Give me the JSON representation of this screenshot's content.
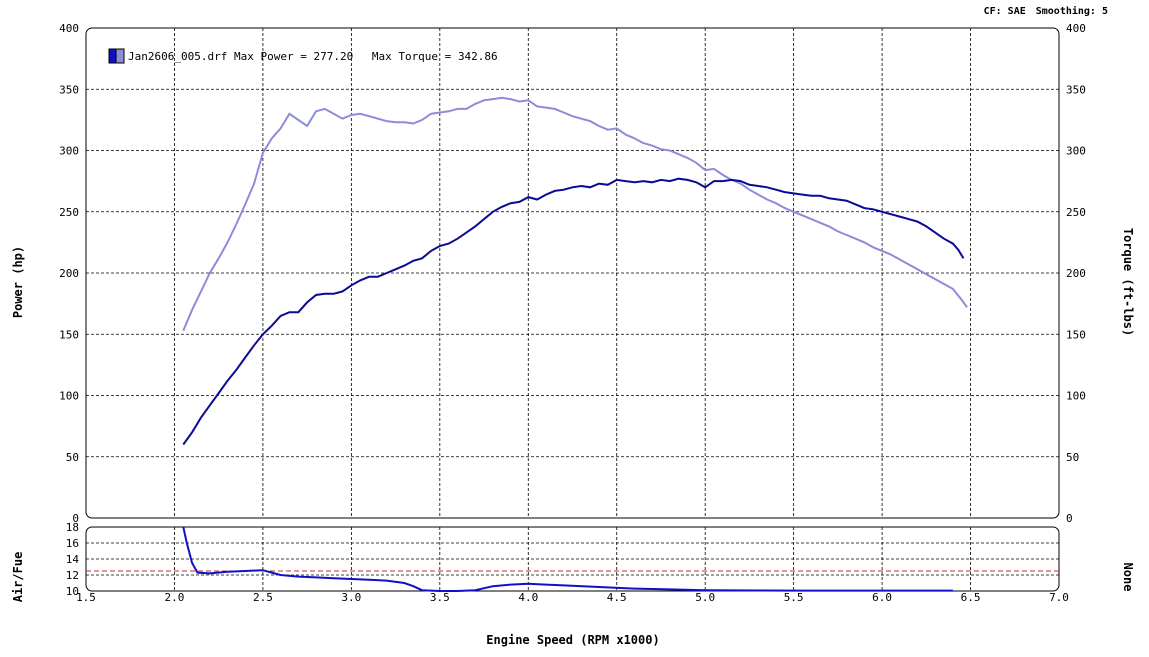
{
  "header": {
    "cf_label": "CF: SAE",
    "smoothing_label": "Smoothing: 5"
  },
  "chart_data": {
    "type": "line",
    "x_axis": {
      "label": "Engine Speed (RPM x1000)",
      "range": [
        1.5,
        7.0
      ],
      "ticks": [
        "1.5",
        "2.0",
        "2.5",
        "3.0",
        "3.5",
        "4.0",
        "4.5",
        "5.0",
        "5.5",
        "6.0",
        "6.5",
        "7.0"
      ]
    },
    "y_left": {
      "label": "Power (hp)",
      "range": [
        0,
        400
      ],
      "ticks": [
        "0",
        "50",
        "100",
        "150",
        "200",
        "250",
        "300",
        "350",
        "400"
      ]
    },
    "y_right": {
      "label": "Torque (ft-lbs)",
      "range": [
        0,
        400
      ],
      "ticks": [
        "0",
        "50",
        "100",
        "150",
        "200",
        "250",
        "300",
        "350",
        "400"
      ]
    },
    "legend": {
      "file": "Jan2606_005.drf",
      "max_power_label": "Max Power =",
      "max_power": "277.20",
      "max_torque_label": "Max Torque =",
      "max_torque": "342.86"
    },
    "grid": true,
    "series": [
      {
        "key": "power",
        "color": "#0a0a96",
        "points": [
          [
            2.05,
            60
          ],
          [
            2.1,
            70
          ],
          [
            2.15,
            82
          ],
          [
            2.2,
            92
          ],
          [
            2.25,
            102
          ],
          [
            2.3,
            112
          ],
          [
            2.35,
            121
          ],
          [
            2.4,
            131
          ],
          [
            2.45,
            141
          ],
          [
            2.5,
            150
          ],
          [
            2.55,
            157
          ],
          [
            2.6,
            165
          ],
          [
            2.65,
            168
          ],
          [
            2.7,
            168
          ],
          [
            2.75,
            176
          ],
          [
            2.8,
            182
          ],
          [
            2.85,
            183
          ],
          [
            2.9,
            183
          ],
          [
            2.95,
            185
          ],
          [
            3.0,
            190
          ],
          [
            3.05,
            194
          ],
          [
            3.1,
            197
          ],
          [
            3.15,
            197
          ],
          [
            3.2,
            200
          ],
          [
            3.25,
            203
          ],
          [
            3.3,
            206
          ],
          [
            3.35,
            210
          ],
          [
            3.4,
            212
          ],
          [
            3.45,
            218
          ],
          [
            3.5,
            222
          ],
          [
            3.55,
            224
          ],
          [
            3.6,
            228
          ],
          [
            3.65,
            233
          ],
          [
            3.7,
            238
          ],
          [
            3.75,
            244
          ],
          [
            3.8,
            250
          ],
          [
            3.85,
            254
          ],
          [
            3.9,
            257
          ],
          [
            3.95,
            258
          ],
          [
            4.0,
            262
          ],
          [
            4.05,
            260
          ],
          [
            4.1,
            264
          ],
          [
            4.15,
            267
          ],
          [
            4.2,
            268
          ],
          [
            4.25,
            270
          ],
          [
            4.3,
            271
          ],
          [
            4.35,
            270
          ],
          [
            4.4,
            273
          ],
          [
            4.45,
            272
          ],
          [
            4.5,
            276
          ],
          [
            4.55,
            275
          ],
          [
            4.6,
            274
          ],
          [
            4.65,
            275
          ],
          [
            4.7,
            274
          ],
          [
            4.75,
            276
          ],
          [
            4.8,
            275
          ],
          [
            4.85,
            277
          ],
          [
            4.9,
            276
          ],
          [
            4.95,
            274
          ],
          [
            5.0,
            270
          ],
          [
            5.05,
            275
          ],
          [
            5.1,
            275
          ],
          [
            5.15,
            276
          ],
          [
            5.2,
            275
          ],
          [
            5.25,
            272
          ],
          [
            5.3,
            271
          ],
          [
            5.35,
            270
          ],
          [
            5.4,
            268
          ],
          [
            5.45,
            266
          ],
          [
            5.5,
            265
          ],
          [
            5.55,
            264
          ],
          [
            5.6,
            263
          ],
          [
            5.65,
            263
          ],
          [
            5.7,
            261
          ],
          [
            5.75,
            260
          ],
          [
            5.8,
            259
          ],
          [
            5.85,
            256
          ],
          [
            5.9,
            253
          ],
          [
            5.95,
            252
          ],
          [
            6.0,
            250
          ],
          [
            6.05,
            248
          ],
          [
            6.1,
            246
          ],
          [
            6.15,
            244
          ],
          [
            6.2,
            242
          ],
          [
            6.25,
            238
          ],
          [
            6.3,
            233
          ],
          [
            6.35,
            228
          ],
          [
            6.4,
            224
          ],
          [
            6.43,
            219
          ],
          [
            6.46,
            212
          ]
        ]
      },
      {
        "key": "torque",
        "color": "#8c8cd8",
        "points": [
          [
            2.05,
            153
          ],
          [
            2.1,
            170
          ],
          [
            2.15,
            185
          ],
          [
            2.2,
            200
          ],
          [
            2.25,
            212
          ],
          [
            2.3,
            225
          ],
          [
            2.35,
            240
          ],
          [
            2.4,
            256
          ],
          [
            2.45,
            273
          ],
          [
            2.5,
            298
          ],
          [
            2.55,
            310
          ],
          [
            2.6,
            318
          ],
          [
            2.65,
            330
          ],
          [
            2.7,
            325
          ],
          [
            2.75,
            320
          ],
          [
            2.8,
            332
          ],
          [
            2.85,
            334
          ],
          [
            2.9,
            330
          ],
          [
            2.95,
            326
          ],
          [
            3.0,
            329
          ],
          [
            3.05,
            330
          ],
          [
            3.1,
            328
          ],
          [
            3.15,
            326
          ],
          [
            3.2,
            324
          ],
          [
            3.25,
            323
          ],
          [
            3.3,
            323
          ],
          [
            3.35,
            322
          ],
          [
            3.4,
            325
          ],
          [
            3.45,
            330
          ],
          [
            3.5,
            331
          ],
          [
            3.55,
            332
          ],
          [
            3.6,
            334
          ],
          [
            3.65,
            334
          ],
          [
            3.7,
            338
          ],
          [
            3.75,
            341
          ],
          [
            3.8,
            342
          ],
          [
            3.85,
            343
          ],
          [
            3.9,
            342
          ],
          [
            3.95,
            340
          ],
          [
            4.0,
            341
          ],
          [
            4.05,
            336
          ],
          [
            4.1,
            335
          ],
          [
            4.15,
            334
          ],
          [
            4.2,
            331
          ],
          [
            4.25,
            328
          ],
          [
            4.3,
            326
          ],
          [
            4.35,
            324
          ],
          [
            4.4,
            320
          ],
          [
            4.45,
            317
          ],
          [
            4.5,
            318
          ],
          [
            4.55,
            313
          ],
          [
            4.6,
            310
          ],
          [
            4.65,
            306
          ],
          [
            4.7,
            304
          ],
          [
            4.75,
            301
          ],
          [
            4.8,
            300
          ],
          [
            4.85,
            297
          ],
          [
            4.9,
            294
          ],
          [
            4.95,
            290
          ],
          [
            5.0,
            284
          ],
          [
            5.05,
            285
          ],
          [
            5.1,
            280
          ],
          [
            5.15,
            276
          ],
          [
            5.2,
            273
          ],
          [
            5.25,
            268
          ],
          [
            5.3,
            264
          ],
          [
            5.35,
            260
          ],
          [
            5.4,
            257
          ],
          [
            5.45,
            253
          ],
          [
            5.5,
            250
          ],
          [
            5.55,
            247
          ],
          [
            5.6,
            244
          ],
          [
            5.65,
            241
          ],
          [
            5.7,
            238
          ],
          [
            5.75,
            234
          ],
          [
            5.8,
            231
          ],
          [
            5.85,
            228
          ],
          [
            5.9,
            225
          ],
          [
            5.95,
            221
          ],
          [
            6.0,
            218
          ],
          [
            6.05,
            215
          ],
          [
            6.1,
            211
          ],
          [
            6.15,
            207
          ],
          [
            6.2,
            203
          ],
          [
            6.25,
            199
          ],
          [
            6.3,
            195
          ],
          [
            6.35,
            191
          ],
          [
            6.4,
            187
          ],
          [
            6.45,
            178
          ],
          [
            6.48,
            172
          ]
        ]
      }
    ],
    "afr_panel": {
      "left_label": "Air/Fue",
      "right_label": "None",
      "range": [
        10,
        18
      ],
      "ticks": [
        "10",
        "12",
        "14",
        "16",
        "18"
      ],
      "reference_line": 12.5,
      "reference_color": "#c03030",
      "series_color": "#1010c8",
      "points": [
        [
          2.05,
          18.5
        ],
        [
          2.07,
          16
        ],
        [
          2.1,
          13.5
        ],
        [
          2.13,
          12.3
        ],
        [
          2.2,
          12.2
        ],
        [
          2.3,
          12.4
        ],
        [
          2.4,
          12.5
        ],
        [
          2.5,
          12.6
        ],
        [
          2.55,
          12.3
        ],
        [
          2.6,
          12.0
        ],
        [
          2.7,
          11.8
        ],
        [
          2.8,
          11.7
        ],
        [
          2.9,
          11.6
        ],
        [
          3.0,
          11.5
        ],
        [
          3.1,
          11.4
        ],
        [
          3.2,
          11.3
        ],
        [
          3.3,
          11.0
        ],
        [
          3.35,
          10.6
        ],
        [
          3.4,
          10.1
        ],
        [
          3.5,
          10.0
        ],
        [
          3.6,
          10.0
        ],
        [
          3.7,
          10.1
        ],
        [
          3.8,
          10.6
        ],
        [
          3.9,
          10.8
        ],
        [
          4.0,
          10.9
        ],
        [
          4.1,
          10.8
        ],
        [
          4.2,
          10.7
        ],
        [
          4.4,
          10.5
        ],
        [
          4.6,
          10.3
        ],
        [
          4.8,
          10.2
        ],
        [
          5.0,
          10.1
        ],
        [
          5.5,
          10.05
        ],
        [
          6.0,
          10.05
        ],
        [
          6.4,
          10.05
        ]
      ]
    }
  }
}
